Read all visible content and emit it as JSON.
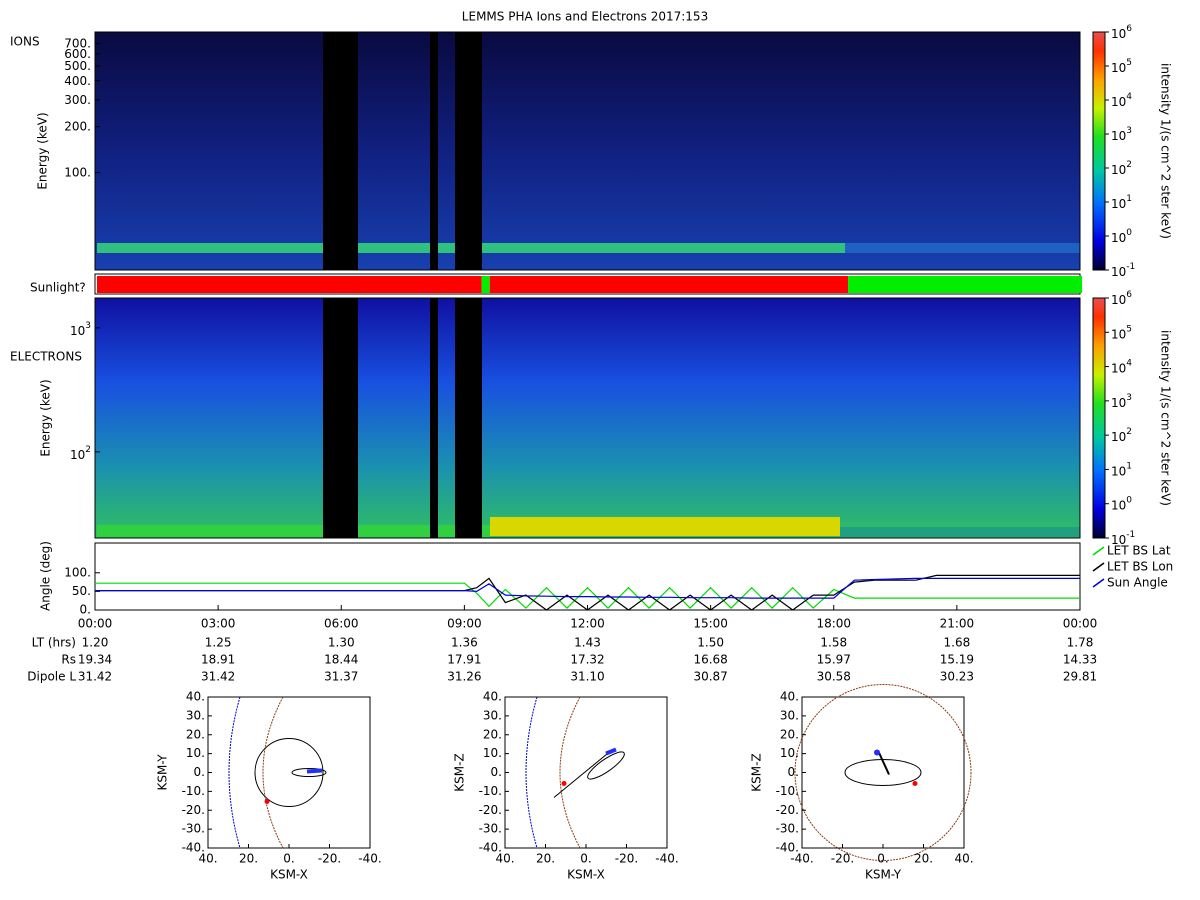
{
  "title": "LEMMS PHA Ions and Electrons  2017:153",
  "ions": {
    "label": "IONS",
    "ylabel": "Energy (keV)",
    "log": true,
    "ylim": [
      23,
      835
    ],
    "yticks": [
      {
        "value": 700,
        "label": "700."
      },
      {
        "value": 600,
        "label": "600."
      },
      {
        "value": 500,
        "label": "500."
      },
      {
        "value": 400,
        "label": "400."
      },
      {
        "value": 300,
        "label": "300."
      },
      {
        "value": 200,
        "label": "200."
      },
      {
        "value": 100,
        "label": "100."
      }
    ],
    "colorbar": {
      "label": "intensity 1/(s cm^2 ster keV)",
      "clim": [
        0.1,
        1000000
      ],
      "ticks": [
        {
          "value": 0.1,
          "label": "10",
          "exponent": "-1"
        },
        {
          "value": 1,
          "label": "10",
          "exponent": "0"
        },
        {
          "value": 10,
          "label": "10",
          "exponent": "1"
        },
        {
          "value": 100,
          "label": "10",
          "exponent": "2"
        },
        {
          "value": 1000,
          "label": "10",
          "exponent": "3"
        },
        {
          "value": 10000,
          "label": "10",
          "exponent": "4"
        },
        {
          "value": 100000,
          "label": "10",
          "exponent": "5"
        },
        {
          "value": 1000000,
          "label": "10",
          "exponent": "6"
        }
      ]
    }
  },
  "sunlight": {
    "label": "Sunlight?",
    "segments": [
      {
        "start": 0,
        "end": 9.37,
        "color": "#ff0000"
      },
      {
        "start": 9.37,
        "end": 9.57,
        "color": "#00ee00"
      },
      {
        "start": 9.57,
        "end": 18.3,
        "color": "#ff0000"
      },
      {
        "start": 18.3,
        "end": 24,
        "color": "#00ee00"
      }
    ]
  },
  "electrons": {
    "label": "ELECTRONS",
    "ylabel": "Energy (keV)",
    "log": true,
    "ylim": [
      20.2,
      1740
    ],
    "yticks": [
      {
        "value": 1000,
        "label": "10",
        "exponent": "3"
      },
      {
        "value": 100,
        "label": "10",
        "exponent": "2"
      }
    ],
    "colorbar": {
      "label": "intensity 1/(s cm^2 ster keV)",
      "clim": [
        0.1,
        1000000
      ],
      "ticks": [
        {
          "value": 0.1,
          "label": "10",
          "exponent": "-1"
        },
        {
          "value": 1,
          "label": "10",
          "exponent": "0"
        },
        {
          "value": 10,
          "label": "10",
          "exponent": "1"
        },
        {
          "value": 100,
          "label": "10",
          "exponent": "2"
        },
        {
          "value": 1000,
          "label": "10",
          "exponent": "3"
        },
        {
          "value": 10000,
          "label": "10",
          "exponent": "4"
        },
        {
          "value": 100000,
          "label": "10",
          "exponent": "5"
        },
        {
          "value": 1000000,
          "label": "10",
          "exponent": "6"
        }
      ]
    }
  },
  "angle": {
    "ylabel": "Angle (deg)",
    "ylim": [
      0,
      180
    ],
    "yticks": [
      {
        "value": 0,
        "label": "0."
      },
      {
        "value": 50,
        "label": "50."
      },
      {
        "value": 100,
        "label": "100."
      }
    ],
    "x": [
      0,
      1,
      2,
      3,
      4,
      5,
      6,
      7,
      8,
      9,
      9.3,
      9.6,
      10,
      10.5,
      11,
      11.5,
      12,
      12.5,
      13,
      13.5,
      14,
      14.5,
      15,
      15.5,
      16,
      16.5,
      17,
      17.5,
      18,
      18.5,
      19,
      20,
      20.5,
      21,
      22,
      23,
      24
    ],
    "series": [
      {
        "name": "LET BS Lat",
        "color": "#00dd00",
        "values": [
          72,
          72,
          72,
          72,
          72,
          72,
          72,
          72,
          72,
          72,
          45,
          10,
          55,
          5,
          60,
          5,
          60,
          5,
          60,
          5,
          60,
          5,
          60,
          5,
          60,
          5,
          60,
          5,
          55,
          32,
          32,
          32,
          32,
          32,
          32,
          32,
          32
        ]
      },
      {
        "name": "LET BS Lon",
        "color": "#000000",
        "values": [
          52,
          52,
          52,
          52,
          52,
          52,
          52,
          52,
          52,
          52,
          60,
          85,
          20,
          40,
          0,
          40,
          0,
          40,
          0,
          40,
          0,
          40,
          0,
          40,
          0,
          40,
          0,
          40,
          40,
          75,
          80,
          80,
          93,
          93,
          93,
          93,
          93
        ]
      },
      {
        "name": "Sun Angle",
        "color": "#0000dd",
        "values": [
          52,
          52,
          52,
          52,
          52,
          52,
          52,
          52,
          52,
          52,
          50,
          70,
          40,
          38,
          37,
          36,
          36,
          35,
          35,
          34,
          34,
          33,
          33,
          33,
          32,
          32,
          32,
          32,
          32,
          80,
          82,
          85,
          85,
          85,
          85,
          85,
          85
        ]
      }
    ]
  },
  "time_axis": {
    "xlim": [
      0,
      24
    ],
    "ticks": [
      {
        "value": 0,
        "label": "00:00"
      },
      {
        "value": 3,
        "label": "03:00"
      },
      {
        "value": 6,
        "label": "06:00"
      },
      {
        "value": 9,
        "label": "09:00"
      },
      {
        "value": 12,
        "label": "12:00"
      },
      {
        "value": 15,
        "label": "15:00"
      },
      {
        "value": 18,
        "label": "18:00"
      },
      {
        "value": 21,
        "label": "21:00"
      },
      {
        "value": 24,
        "label": "00:00"
      }
    ]
  },
  "ephemeris": [
    {
      "label": "LT (hrs)",
      "values": [
        "1.20",
        "1.25",
        "1.30",
        "1.36",
        "1.43",
        "1.50",
        "1.58",
        "1.68",
        "1.78"
      ]
    },
    {
      "label": "Rs",
      "values": [
        "19.34",
        "18.91",
        "18.44",
        "17.91",
        "17.32",
        "16.68",
        "15.97",
        "15.19",
        "14.33"
      ]
    },
    {
      "label": "Dipole L",
      "values": [
        "31.42",
        "31.42",
        "31.37",
        "31.26",
        "31.10",
        "30.87",
        "30.58",
        "30.23",
        "29.81"
      ]
    }
  ],
  "orbits": [
    {
      "xlabel": "KSM-X",
      "ylabel": "KSM-Y",
      "xlim": [
        40,
        -40
      ],
      "ylim": [
        40,
        -40
      ],
      "xticks": [
        {
          "value": 40,
          "label": "40."
        },
        {
          "value": 20,
          "label": "20."
        },
        {
          "value": 0,
          "label": "0."
        },
        {
          "value": -20,
          "label": "-20."
        },
        {
          "value": -40,
          "label": "-40."
        }
      ],
      "yticks": [
        {
          "value": -40,
          "label": "-40."
        },
        {
          "value": -30,
          "label": "-30."
        },
        {
          "value": -20,
          "label": "-20."
        },
        {
          "value": -10,
          "label": "-10."
        },
        {
          "value": 0,
          "label": "0."
        },
        {
          "value": 10,
          "label": "10."
        },
        {
          "value": 20,
          "label": "20."
        },
        {
          "value": 30,
          "label": "30."
        },
        {
          "value": 40,
          "label": "40."
        }
      ]
    },
    {
      "xlabel": "KSM-X",
      "ylabel": "KSM-Z",
      "xlim": [
        40,
        -40
      ],
      "ylim": [
        -40,
        40
      ],
      "xticks": [
        {
          "value": 40,
          "label": "40."
        },
        {
          "value": 20,
          "label": "20."
        },
        {
          "value": 0,
          "label": "0."
        },
        {
          "value": -20,
          "label": "-20."
        },
        {
          "value": -40,
          "label": "-40."
        }
      ],
      "yticks": [
        {
          "value": 40,
          "label": "40."
        },
        {
          "value": 30,
          "label": "30."
        },
        {
          "value": 20,
          "label": "20."
        },
        {
          "value": 10,
          "label": "10."
        },
        {
          "value": 0,
          "label": "0."
        },
        {
          "value": -10,
          "label": "-10."
        },
        {
          "value": -20,
          "label": "-20."
        },
        {
          "value": -30,
          "label": "-30."
        },
        {
          "value": -40,
          "label": "-40."
        }
      ]
    },
    {
      "xlabel": "KSM-Y",
      "ylabel": "KSM-Z",
      "xlim": [
        -40,
        40
      ],
      "ylim": [
        -40,
        40
      ],
      "xticks": [
        {
          "value": -40,
          "label": "-40."
        },
        {
          "value": -20,
          "label": "-20."
        },
        {
          "value": 0,
          "label": "0."
        },
        {
          "value": 20,
          "label": "20."
        },
        {
          "value": 40,
          "label": "40."
        }
      ],
      "yticks": [
        {
          "value": 40,
          "label": "40."
        },
        {
          "value": 30,
          "label": "30."
        },
        {
          "value": 20,
          "label": "20."
        },
        {
          "value": 10,
          "label": "10."
        },
        {
          "value": 0,
          "label": "0."
        },
        {
          "value": -10,
          "label": "-10."
        },
        {
          "value": -20,
          "label": "-20."
        },
        {
          "value": -30,
          "label": "-30."
        },
        {
          "value": -40,
          "label": "-40."
        }
      ]
    }
  ]
}
